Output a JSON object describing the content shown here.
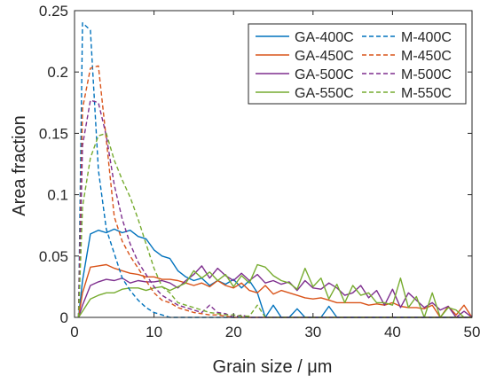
{
  "chart_data": {
    "type": "line",
    "xlabel": "Grain size / μm",
    "ylabel": "Area fraction",
    "xlim": [
      0,
      50
    ],
    "ylim": [
      0,
      0.25
    ],
    "x_ticks": [
      0,
      10,
      20,
      30,
      40,
      50
    ],
    "x_tick_labels": [
      "0",
      "10",
      "20",
      "30",
      "40",
      "50"
    ],
    "y_ticks": [
      0,
      0.05,
      0.1,
      0.15,
      0.2,
      0.25
    ],
    "y_tick_labels": [
      "0",
      "0.05",
      "0.1",
      "0.15",
      "0.2",
      "0.25"
    ],
    "grid": false,
    "legend": {
      "position": "top-right",
      "columns": 2
    },
    "x": [
      0.5,
      1,
      2,
      3,
      4,
      5,
      6,
      7,
      8,
      9,
      10,
      11,
      12,
      13,
      14,
      15,
      16,
      17,
      18,
      19,
      20,
      21,
      22,
      23,
      24,
      25,
      26,
      27,
      28,
      29,
      30,
      31,
      32,
      33,
      34,
      35,
      36,
      37,
      38,
      39,
      40,
      41,
      42,
      43,
      44,
      45,
      46,
      47,
      48,
      49,
      50
    ],
    "series": [
      {
        "name": "GA-400C",
        "color": "#0072BD",
        "dash": false,
        "values": [
          0,
          0.03,
          0.068,
          0.071,
          0.069,
          0.072,
          0.069,
          0.071,
          0.066,
          0.064,
          0.055,
          0.05,
          0.048,
          0.038,
          0.033,
          0.03,
          0.032,
          0.026,
          0.03,
          0.027,
          0.031,
          0.024,
          0.03,
          0.02,
          0,
          0.01,
          0,
          0,
          0.007,
          0,
          0,
          0,
          0.009,
          0,
          0,
          0,
          0,
          0,
          0,
          0,
          0,
          0,
          0,
          0,
          0,
          0,
          0,
          0,
          0,
          0,
          0
        ]
      },
      {
        "name": "GA-450C",
        "color": "#D95319",
        "dash": false,
        "values": [
          0,
          0.02,
          0.041,
          0.042,
          0.043,
          0.04,
          0.038,
          0.036,
          0.035,
          0.033,
          0.033,
          0.031,
          0.031,
          0.03,
          0.028,
          0.026,
          0.028,
          0.025,
          0.03,
          0.026,
          0.024,
          0.028,
          0.022,
          0.02,
          0.026,
          0.019,
          0.022,
          0.02,
          0.018,
          0.016,
          0.015,
          0.016,
          0.014,
          0.012,
          0.012,
          0.012,
          0.012,
          0.01,
          0.011,
          0.01,
          0.012,
          0.009,
          0.008,
          0.008,
          0.007,
          0.01,
          0,
          0.009,
          0.002,
          0.01,
          0
        ]
      },
      {
        "name": "GA-500C",
        "color": "#7E2F8E",
        "dash": false,
        "values": [
          0,
          0.01,
          0.026,
          0.029,
          0.031,
          0.03,
          0.032,
          0.028,
          0.03,
          0.029,
          0.029,
          0.03,
          0.028,
          0.024,
          0.03,
          0.035,
          0.042,
          0.032,
          0.04,
          0.034,
          0.03,
          0.036,
          0.03,
          0.035,
          0.028,
          0.03,
          0.027,
          0.029,
          0.022,
          0.03,
          0.024,
          0.023,
          0.028,
          0.024,
          0.018,
          0.02,
          0.026,
          0.016,
          0.022,
          0.01,
          0.023,
          0.008,
          0.02,
          0.014,
          0.008,
          0.012,
          0.006,
          0.009,
          0,
          0.005,
          0
        ]
      },
      {
        "name": "GA-550C",
        "color": "#77AC30",
        "dash": false,
        "values": [
          0,
          0.005,
          0.015,
          0.018,
          0.02,
          0.02,
          0.023,
          0.024,
          0.024,
          0.022,
          0.024,
          0.025,
          0.022,
          0.025,
          0.028,
          0.038,
          0.032,
          0.037,
          0.03,
          0.035,
          0.025,
          0.034,
          0.028,
          0.043,
          0.041,
          0.034,
          0.03,
          0.028,
          0.023,
          0.04,
          0.025,
          0.032,
          0.015,
          0.027,
          0.012,
          0.026,
          0.018,
          0.02,
          0.012,
          0.012,
          0.01,
          0.032,
          0.008,
          0.017,
          0,
          0.02,
          0,
          0.008,
          0.006,
          0,
          0
        ]
      },
      {
        "name": "M-400C",
        "color": "#0072BD",
        "dash": true,
        "values": [
          0,
          0.24,
          0.234,
          0.12,
          0.072,
          0.052,
          0.032,
          0.022,
          0.014,
          0.008,
          0.004,
          0.002,
          0,
          0,
          0,
          0,
          0,
          0,
          0,
          0,
          0,
          0,
          0,
          0,
          0,
          0,
          0,
          0,
          0,
          0,
          0,
          0,
          0,
          0,
          0,
          0,
          0,
          0,
          0,
          0,
          0,
          0,
          0,
          0,
          0,
          0,
          0,
          0,
          0,
          0,
          0
        ]
      },
      {
        "name": "M-450C",
        "color": "#D95319",
        "dash": true,
        "values": [
          0,
          0.17,
          0.203,
          0.205,
          0.145,
          0.082,
          0.062,
          0.05,
          0.04,
          0.03,
          0.02,
          0.014,
          0.012,
          0.008,
          0.006,
          0.004,
          0.003,
          0.002,
          0.002,
          0.001,
          0,
          0,
          0,
          0,
          0,
          0,
          0,
          0,
          0,
          0,
          0,
          0,
          0,
          0,
          0,
          0,
          0,
          0,
          0,
          0,
          0,
          0,
          0,
          0,
          0,
          0,
          0,
          0,
          0,
          0,
          0
        ]
      },
      {
        "name": "M-500C",
        "color": "#7E2F8E",
        "dash": true,
        "values": [
          0,
          0.14,
          0.177,
          0.175,
          0.148,
          0.108,
          0.08,
          0.06,
          0.045,
          0.035,
          0.025,
          0.018,
          0.014,
          0.01,
          0.008,
          0.006,
          0.004,
          0.01,
          0.004,
          0.003,
          0,
          0.002,
          0,
          0,
          0,
          0,
          0,
          0,
          0,
          0,
          0,
          0,
          0,
          0,
          0,
          0,
          0,
          0,
          0,
          0,
          0,
          0,
          0,
          0,
          0,
          0,
          0,
          0,
          0,
          0,
          0
        ]
      },
      {
        "name": "M-550C",
        "color": "#77AC30",
        "dash": true,
        "values": [
          0,
          0.09,
          0.13,
          0.148,
          0.15,
          0.128,
          0.112,
          0.098,
          0.08,
          0.06,
          0.04,
          0.025,
          0.02,
          0.012,
          0.01,
          0.008,
          0.006,
          0.004,
          0.003,
          0.002,
          0.002,
          0.001,
          0.001,
          0.01,
          0,
          0,
          0,
          0,
          0,
          0,
          0,
          0,
          0,
          0,
          0,
          0,
          0,
          0,
          0,
          0,
          0,
          0,
          0,
          0,
          0,
          0,
          0,
          0,
          0,
          0,
          0
        ]
      }
    ]
  }
}
